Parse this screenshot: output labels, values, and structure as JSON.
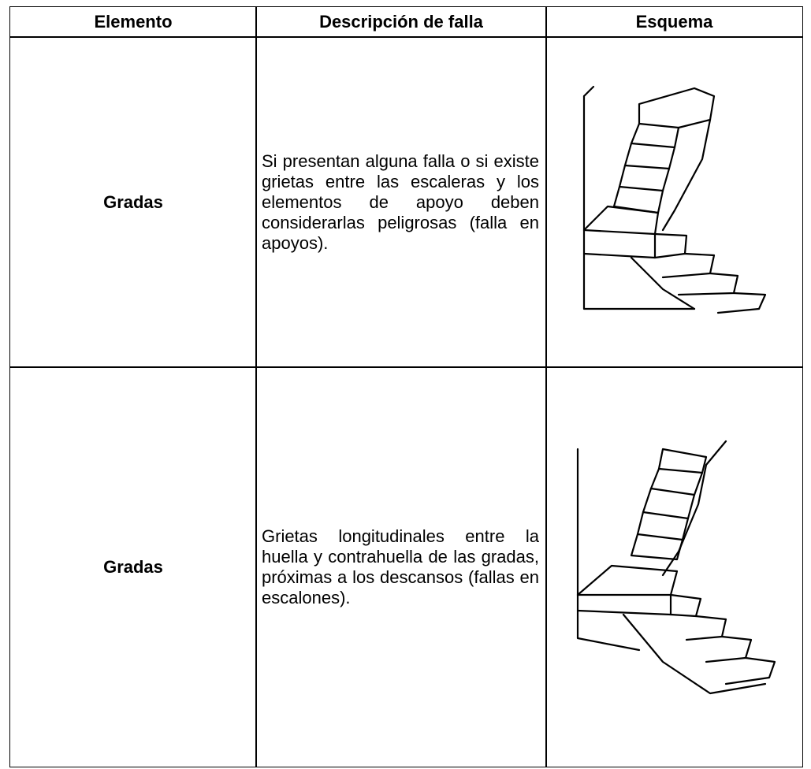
{
  "table": {
    "header": [
      "Elemento",
      "Descripción de falla",
      "Esquema"
    ],
    "rows": [
      [
        "Gradas",
        "Si presentan alguna falla o si existe grietas entre las escaleras y los elementos de apoyo deben considerarlas peligrosas (falla en apoyos)."
      ],
      [
        "Gradas",
        "Grietas longitudinales entre la huella y contrahuella de las gradas, próximas a los descansos (fallas en escalones)."
      ]
    ]
  }
}
